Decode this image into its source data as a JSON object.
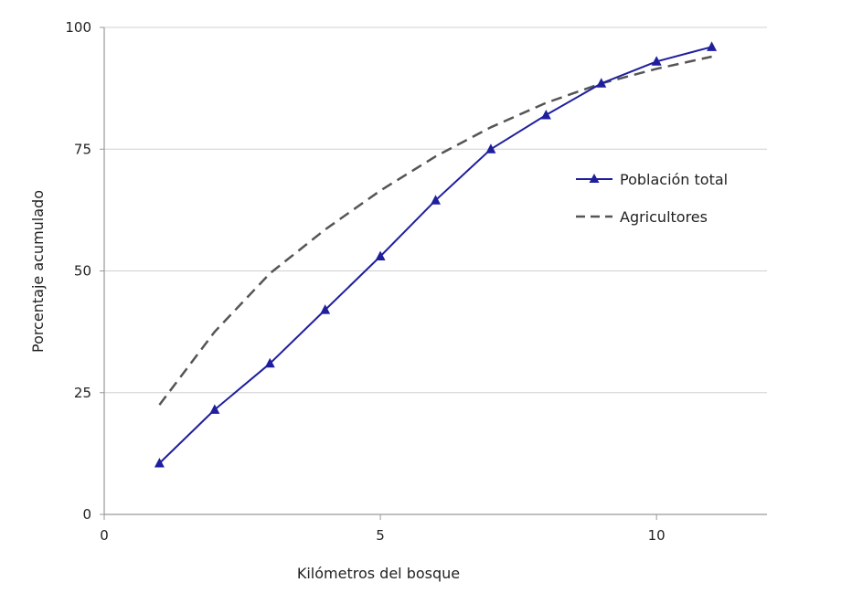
{
  "chart_data": {
    "type": "line",
    "xlabel": "Kilómetros del bosque",
    "ylabel": "Porcentaje acumulado",
    "xlim": [
      0,
      12
    ],
    "ylim": [
      0,
      100
    ],
    "xticks": [
      0,
      5,
      10
    ],
    "yticks": [
      0,
      25,
      50,
      75,
      100
    ],
    "grid": "horizontal",
    "legend_position": "right",
    "series": [
      {
        "name": "Población total",
        "style": "solid",
        "marker": "triangle",
        "color": "#1f1f9e",
        "x": [
          1,
          2,
          3,
          4,
          5,
          6,
          7,
          8,
          9,
          10,
          11
        ],
        "y": [
          10.5,
          21.5,
          31,
          42,
          53,
          64.5,
          75,
          82,
          88.5,
          93,
          96
        ]
      },
      {
        "name": "Agricultores",
        "style": "dashed",
        "marker": "none",
        "color": "#555555",
        "x": [
          1,
          2,
          3,
          4,
          5,
          6,
          7,
          8,
          9,
          10,
          11
        ],
        "y": [
          22.5,
          37.5,
          49.5,
          58.5,
          66.5,
          73.5,
          79.5,
          84.5,
          88.5,
          91.5,
          94
        ]
      }
    ]
  }
}
